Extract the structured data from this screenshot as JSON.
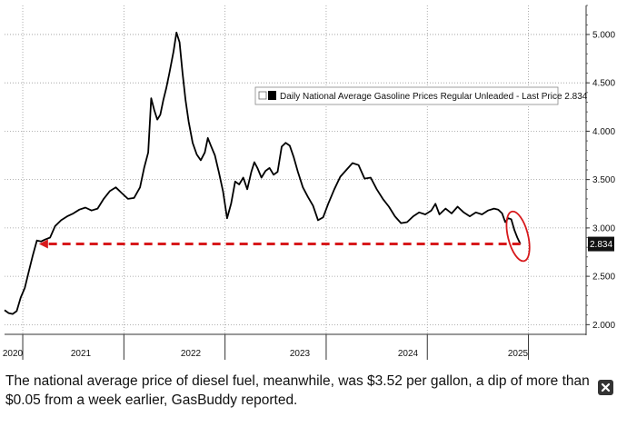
{
  "chart_data": {
    "type": "line",
    "title": "",
    "xlabel": "",
    "ylabel": "",
    "x_tick_labels": [
      "2020",
      "2021",
      "2022",
      "2023",
      "2024",
      "2025"
    ],
    "y_ticks": [
      2.0,
      2.5,
      3.0,
      3.5,
      4.0,
      4.5,
      5.0
    ],
    "y_tick_labels": [
      "2.000",
      "2.500",
      "3.000",
      "3.500",
      "4.000",
      "4.500",
      "5.000"
    ],
    "ylim": [
      1.9,
      5.3
    ],
    "xlim": [
      2020.1,
      2025.85
    ],
    "grid": "horizontal dotted",
    "legend": {
      "position": "top-right",
      "entries": [
        "Daily National Average Gasoline Prices Regular Unleaded - Last Price 2.834"
      ]
    },
    "last_price_label": "2.834",
    "series": [
      {
        "name": "Daily National Average Gasoline Prices Regular Unleaded - Last Price 2.834",
        "color": "#000000",
        "points": [
          [
            2020.1,
            2.15
          ],
          [
            2020.14,
            2.12
          ],
          [
            2020.18,
            2.11
          ],
          [
            2020.22,
            2.14
          ],
          [
            2020.26,
            2.28
          ],
          [
            2020.3,
            2.38
          ],
          [
            2020.34,
            2.55
          ],
          [
            2020.38,
            2.72
          ],
          [
            2020.42,
            2.87
          ],
          [
            2020.46,
            2.86
          ],
          [
            2020.5,
            2.88
          ],
          [
            2020.55,
            2.9
          ],
          [
            2020.6,
            3.02
          ],
          [
            2020.66,
            3.08
          ],
          [
            2020.72,
            3.12
          ],
          [
            2020.78,
            3.15
          ],
          [
            2020.84,
            3.19
          ],
          [
            2020.9,
            3.21
          ],
          [
            2020.96,
            3.18
          ],
          [
            2021.02,
            3.2
          ],
          [
            2021.08,
            3.3
          ],
          [
            2021.14,
            3.38
          ],
          [
            2021.2,
            3.42
          ],
          [
            2021.26,
            3.36
          ],
          [
            2021.32,
            3.3
          ],
          [
            2021.38,
            3.31
          ],
          [
            2021.44,
            3.42
          ],
          [
            2021.48,
            3.62
          ],
          [
            2021.52,
            3.78
          ],
          [
            2021.55,
            4.34
          ],
          [
            2021.58,
            4.22
          ],
          [
            2021.61,
            4.12
          ],
          [
            2021.64,
            4.17
          ],
          [
            2021.67,
            4.32
          ],
          [
            2021.7,
            4.45
          ],
          [
            2021.73,
            4.6
          ],
          [
            2021.77,
            4.82
          ],
          [
            2021.8,
            5.02
          ],
          [
            2021.83,
            4.92
          ],
          [
            2021.86,
            4.6
          ],
          [
            2021.89,
            4.32
          ],
          [
            2021.92,
            4.1
          ],
          [
            2021.96,
            3.88
          ],
          [
            2022.0,
            3.76
          ],
          [
            2022.04,
            3.7
          ],
          [
            2022.08,
            3.78
          ],
          [
            2022.11,
            3.93
          ],
          [
            2022.14,
            3.85
          ],
          [
            2022.18,
            3.75
          ],
          [
            2022.22,
            3.57
          ],
          [
            2022.26,
            3.38
          ],
          [
            2022.3,
            3.1
          ],
          [
            2022.34,
            3.25
          ],
          [
            2022.38,
            3.48
          ],
          [
            2022.42,
            3.45
          ],
          [
            2022.46,
            3.52
          ],
          [
            2022.5,
            3.4
          ],
          [
            2022.54,
            3.58
          ],
          [
            2022.57,
            3.68
          ],
          [
            2022.6,
            3.62
          ],
          [
            2022.64,
            3.52
          ],
          [
            2022.68,
            3.59
          ],
          [
            2022.72,
            3.62
          ],
          [
            2022.76,
            3.55
          ],
          [
            2022.8,
            3.58
          ],
          [
            2022.84,
            3.84
          ],
          [
            2022.88,
            3.88
          ],
          [
            2022.92,
            3.85
          ],
          [
            2022.96,
            3.73
          ],
          [
            2023.0,
            3.58
          ],
          [
            2023.05,
            3.42
          ],
          [
            2023.1,
            3.32
          ],
          [
            2023.15,
            3.23
          ],
          [
            2023.2,
            3.08
          ],
          [
            2023.25,
            3.11
          ],
          [
            2023.3,
            3.25
          ],
          [
            2023.36,
            3.4
          ],
          [
            2023.42,
            3.53
          ],
          [
            2023.48,
            3.6
          ],
          [
            2023.54,
            3.67
          ],
          [
            2023.6,
            3.65
          ],
          [
            2023.66,
            3.51
          ],
          [
            2023.72,
            3.52
          ],
          [
            2023.78,
            3.4
          ],
          [
            2023.84,
            3.3
          ],
          [
            2023.9,
            3.22
          ],
          [
            2023.96,
            3.12
          ],
          [
            2024.02,
            3.05
          ],
          [
            2024.08,
            3.06
          ],
          [
            2024.14,
            3.12
          ],
          [
            2024.2,
            3.16
          ],
          [
            2024.26,
            3.14
          ],
          [
            2024.32,
            3.18
          ],
          [
            2024.36,
            3.25
          ],
          [
            2024.4,
            3.14
          ],
          [
            2024.46,
            3.2
          ],
          [
            2024.52,
            3.15
          ],
          [
            2024.58,
            3.22
          ],
          [
            2024.64,
            3.16
          ],
          [
            2024.7,
            3.12
          ],
          [
            2024.76,
            3.16
          ],
          [
            2024.82,
            3.14
          ],
          [
            2024.88,
            3.18
          ],
          [
            2024.94,
            3.2
          ],
          [
            2024.98,
            3.19
          ],
          [
            2025.02,
            3.15
          ],
          [
            2025.05,
            3.06
          ],
          [
            2025.08,
            3.1
          ],
          [
            2025.11,
            3.09
          ],
          [
            2025.14,
            2.98
          ],
          [
            2025.17,
            2.9
          ],
          [
            2025.2,
            2.834
          ]
        ]
      }
    ],
    "annotations": [
      {
        "type": "dashed-arrow",
        "color": "#d7191c",
        "from": [
          2025.2,
          2.834
        ],
        "to": [
          2020.44,
          2.834
        ]
      },
      {
        "type": "ellipse",
        "color": "#d7191c",
        "center": [
          2025.15,
          2.97
        ]
      }
    ]
  },
  "caption": {
    "text": "The national average price of diesel fuel, meanwhile, was $3.52 per gallon, a dip of more than $0.05 from a week earlier, GasBuddy reported."
  }
}
